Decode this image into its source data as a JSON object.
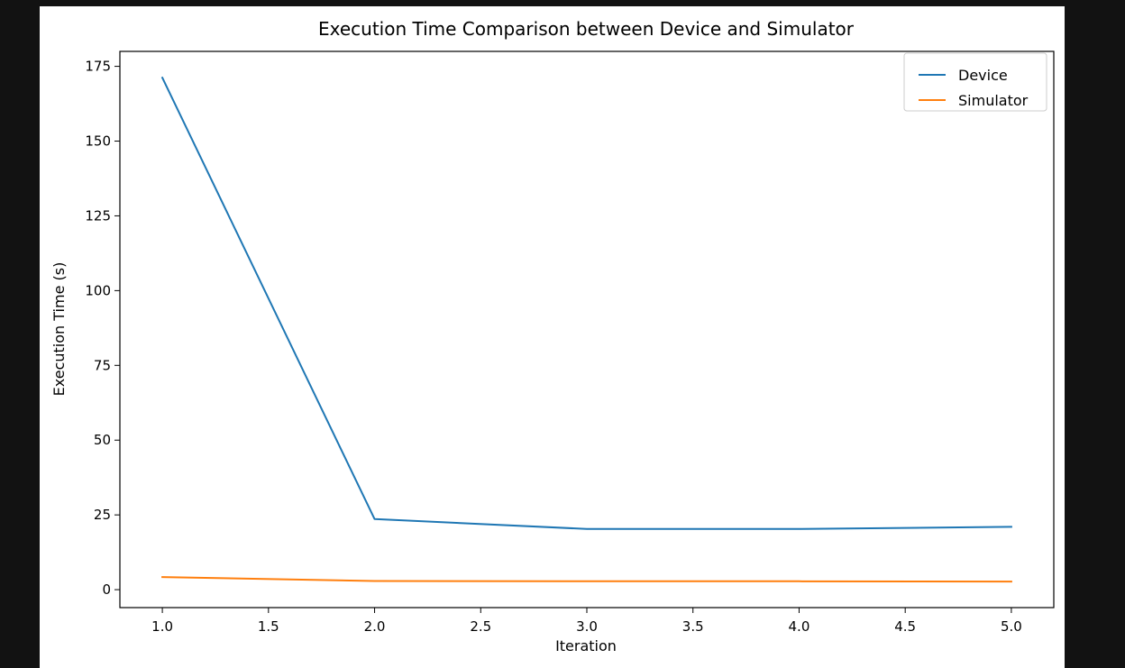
{
  "chart_data": {
    "type": "line",
    "title": "Execution Time Comparison between Device and Simulator",
    "xlabel": "Iteration",
    "ylabel": "Execution Time (s)",
    "xlim": [
      0.8,
      5.2
    ],
    "ylim": [
      -6,
      180
    ],
    "xticks": [
      1.0,
      1.5,
      2.0,
      2.5,
      3.0,
      3.5,
      4.0,
      4.5,
      5.0
    ],
    "xtick_labels": [
      "1.0",
      "1.5",
      "2.0",
      "2.5",
      "3.0",
      "3.5",
      "4.0",
      "4.5",
      "5.0"
    ],
    "yticks": [
      0,
      25,
      50,
      75,
      100,
      125,
      150,
      175
    ],
    "ytick_labels": [
      "0",
      "25",
      "50",
      "75",
      "100",
      "125",
      "150",
      "175"
    ],
    "grid": false,
    "legend_position": "top-right",
    "x": [
      1,
      2,
      3,
      4,
      5
    ],
    "series": [
      {
        "name": "Device",
        "color": "#1f77b4",
        "values": [
          171.2,
          23.6,
          20.3,
          20.3,
          21.0
        ]
      },
      {
        "name": "Simulator",
        "color": "#ff7f0e",
        "values": [
          4.2,
          2.9,
          2.8,
          2.8,
          2.7
        ]
      }
    ]
  }
}
